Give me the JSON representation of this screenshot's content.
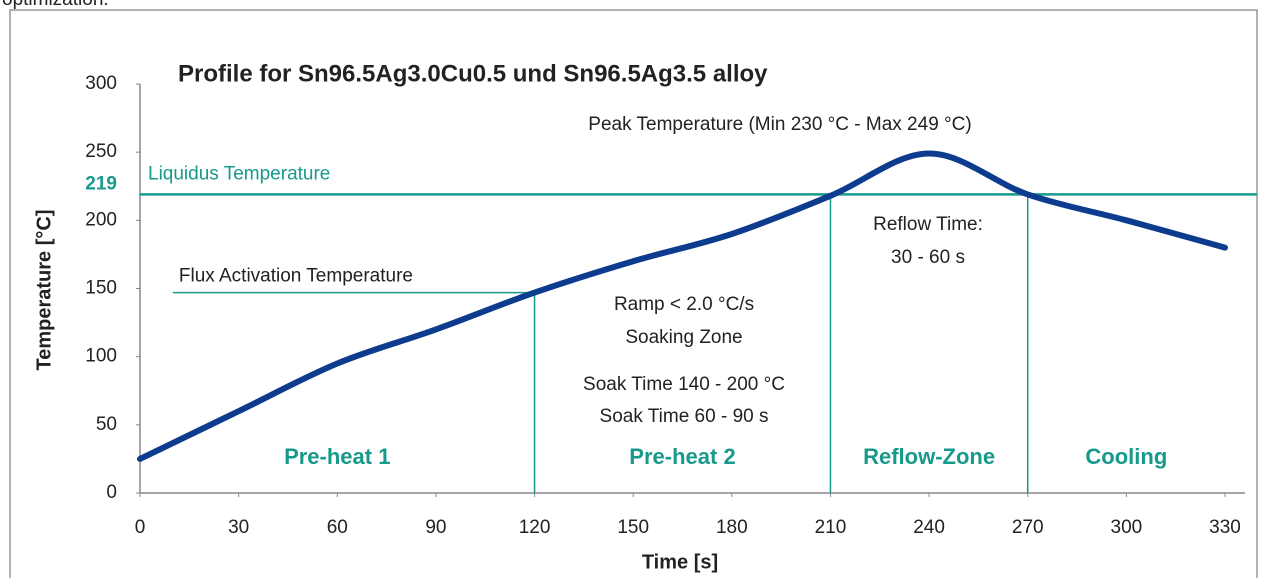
{
  "header_text": "optimization.",
  "chart_data": {
    "type": "line",
    "title": "Profile for Sn96.5Ag3.0Cu0.5 und Sn96.5Ag3.5 alloy",
    "x_label": "Time [s]",
    "y_label": "Temperature [°C]",
    "x": [
      0,
      30,
      60,
      90,
      120,
      150,
      180,
      210,
      240,
      270,
      300,
      330
    ],
    "series": [
      {
        "name": "Profile",
        "color": "#0d3b8e",
        "values": [
          25,
          60,
          95,
          120,
          147,
          170,
          190,
          218,
          249,
          219,
          200,
          180
        ]
      }
    ],
    "xlim": [
      0,
      330
    ],
    "xticks": [
      0,
      30,
      60,
      90,
      120,
      150,
      180,
      210,
      240,
      270,
      300,
      330
    ],
    "ylim": [
      0,
      300
    ],
    "yticks": [
      0,
      50,
      100,
      150,
      200,
      250,
      300
    ],
    "accent_color": "#17998b",
    "liquidus": {
      "label": "Liquidus Temperature",
      "value": 219
    },
    "flux_activation": {
      "label": "Flux Activation Temperature",
      "value": 147,
      "x_range": [
        10,
        120
      ]
    },
    "zone_boundaries": [
      120,
      210,
      270
    ],
    "zones": [
      "Pre-heat 1",
      "Pre-heat 2",
      "Reflow-Zone",
      "Cooling"
    ],
    "peak_annotation": "Peak Temperature (Min 230 °C - Max 249 °C)",
    "reflow_annotation": [
      "Reflow Time:",
      "30 - 60 s"
    ],
    "soak_annotation": [
      "Ramp < 2.0 °C/s",
      "Soaking Zone",
      "Soak Time 140 - 200 °C",
      "Soak Time 60 - 90 s"
    ]
  }
}
